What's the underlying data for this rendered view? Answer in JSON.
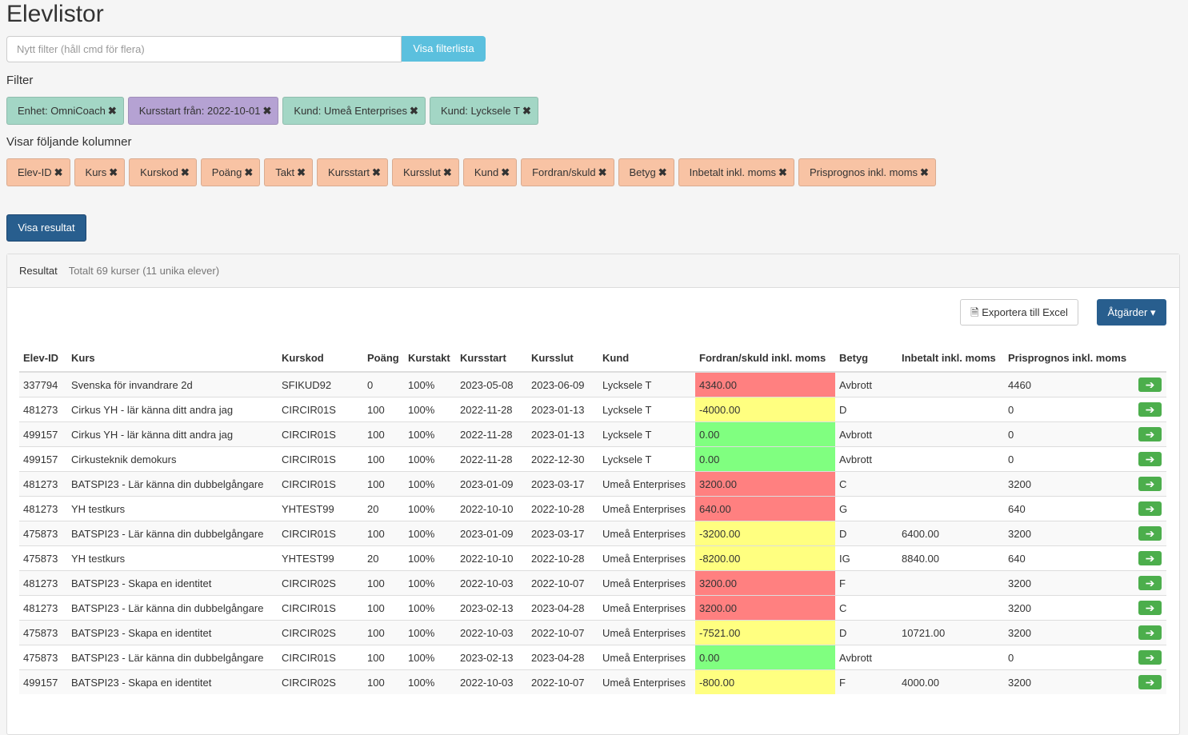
{
  "header": {
    "title": "Elevlistor"
  },
  "filter_input": {
    "placeholder": "Nytt filter (håll cmd för flera)",
    "button": "Visa filterlista"
  },
  "filters": {
    "label": "Filter",
    "chips": [
      {
        "text": "Enhet: OmniCoach",
        "color": "#a3d6c5"
      },
      {
        "text": "Kursstart från: 2022-10-01",
        "color": "#b5a2d3"
      },
      {
        "text": "Kund: Umeå Enterprises",
        "color": "#a3d6c5"
      },
      {
        "text": "Kund: Lycksele T",
        "color": "#a3d6c5"
      }
    ]
  },
  "columns": {
    "label": "Visar följande kolumner",
    "color": "#f8c3a4",
    "chips": [
      "Elev-ID",
      "Kurs",
      "Kurskod",
      "Poäng",
      "Takt",
      "Kursstart",
      "Kursslut",
      "Kund",
      "Fordran/skuld",
      "Betyg",
      "Inbetalt inkl. moms",
      "Prisprognos inkl. moms"
    ]
  },
  "show_button": "Visa resultat",
  "panel": {
    "title": "Resultat",
    "summary": "Totalt 69 kurser (11 unika elever)",
    "export": "Exportera till Excel",
    "actions": "Åtgärder"
  },
  "table": {
    "headers": [
      "Elev-ID",
      "Kurs",
      "Kurskod",
      "Poäng",
      "Kurstakt",
      "Kursstart",
      "Kursslut",
      "Kund",
      "Fordran/skuld inkl. moms",
      "Betyg",
      "Inbetalt inkl. moms",
      "Prisprognos inkl. moms"
    ],
    "rows": [
      [
        "337794",
        "Svenska för invandrare 2d",
        "SFIKUD92",
        "0",
        "100%",
        "2023-05-08",
        "2023-06-09",
        "Lycksele T",
        "4340.00",
        "Avbrott",
        null,
        "4460"
      ],
      [
        "481273",
        "Cirkus YH - lär känna ditt andra jag",
        "CIRCIR01S",
        "100",
        "100%",
        "2022-11-28",
        "2023-01-13",
        "Lycksele T",
        "-4000.00",
        "D",
        null,
        "0"
      ],
      [
        "499157",
        "Cirkus YH - lär känna ditt andra jag",
        "CIRCIR01S",
        "100",
        "100%",
        "2022-11-28",
        "2023-01-13",
        "Lycksele T",
        "0.00",
        "Avbrott",
        null,
        "0"
      ],
      [
        "499157",
        "Cirkusteknik demokurs",
        "CIRCIR01S",
        "100",
        "100%",
        "2022-11-28",
        "2022-12-30",
        "Lycksele T",
        "0.00",
        "Avbrott",
        null,
        "0"
      ],
      [
        "481273",
        "BATSPI23 - Lär känna din dubbelgångare",
        "CIRCIR01S",
        "100",
        "100%",
        "2023-01-09",
        "2023-03-17",
        "Umeå Enterprises",
        "3200.00",
        "C",
        null,
        "3200"
      ],
      [
        "481273",
        "YH testkurs",
        "YHTEST99",
        "20",
        "100%",
        "2022-10-10",
        "2022-10-28",
        "Umeå Enterprises",
        "640.00",
        "G",
        null,
        "640"
      ],
      [
        "475873",
        "BATSPI23 - Lär känna din dubbelgångare",
        "CIRCIR01S",
        "100",
        "100%",
        "2023-01-09",
        "2023-03-17",
        "Umeå Enterprises",
        "-3200.00",
        "D",
        "6400.00",
        "3200"
      ],
      [
        "475873",
        "YH testkurs",
        "YHTEST99",
        "20",
        "100%",
        "2022-10-10",
        "2022-10-28",
        "Umeå Enterprises",
        "-8200.00",
        "IG",
        "8840.00",
        "640"
      ],
      [
        "481273",
        "BATSPI23 - Skapa en identitet",
        "CIRCIR02S",
        "100",
        "100%",
        "2022-10-03",
        "2022-10-07",
        "Umeå Enterprises",
        "3200.00",
        "F",
        null,
        "3200"
      ],
      [
        "481273",
        "BATSPI23 - Lär känna din dubbelgångare",
        "CIRCIR01S",
        "100",
        "100%",
        "2023-02-13",
        "2023-04-28",
        "Umeå Enterprises",
        "3200.00",
        "C",
        null,
        "3200"
      ],
      [
        "475873",
        "BATSPI23 - Skapa en identitet",
        "CIRCIR02S",
        "100",
        "100%",
        "2022-10-03",
        "2022-10-07",
        "Umeå Enterprises",
        "-7521.00",
        "D",
        "10721.00",
        "3200"
      ],
      [
        "475873",
        "BATSPI23 - Lär känna din dubbelgångare",
        "CIRCIR01S",
        "100",
        "100%",
        "2023-02-13",
        "2023-04-28",
        "Umeå Enterprises",
        "0.00",
        "Avbrott",
        null,
        "0"
      ],
      [
        "499157",
        "BATSPI23 - Skapa en identitet",
        "CIRCIR02S",
        "100",
        "100%",
        "2022-10-03",
        "2022-10-07",
        "Umeå Enterprises",
        "-800.00",
        "F",
        "4000.00",
        "3200"
      ]
    ],
    "fordran_colors": [
      "#ff8080",
      "#ffff80",
      "#80ff80",
      "#80ff80",
      "#ff8080",
      "#ff8080",
      "#ffff80",
      "#ffff80",
      "#ff8080",
      "#ff8080",
      "#ffff80",
      "#80ff80",
      "#ffff80"
    ]
  }
}
